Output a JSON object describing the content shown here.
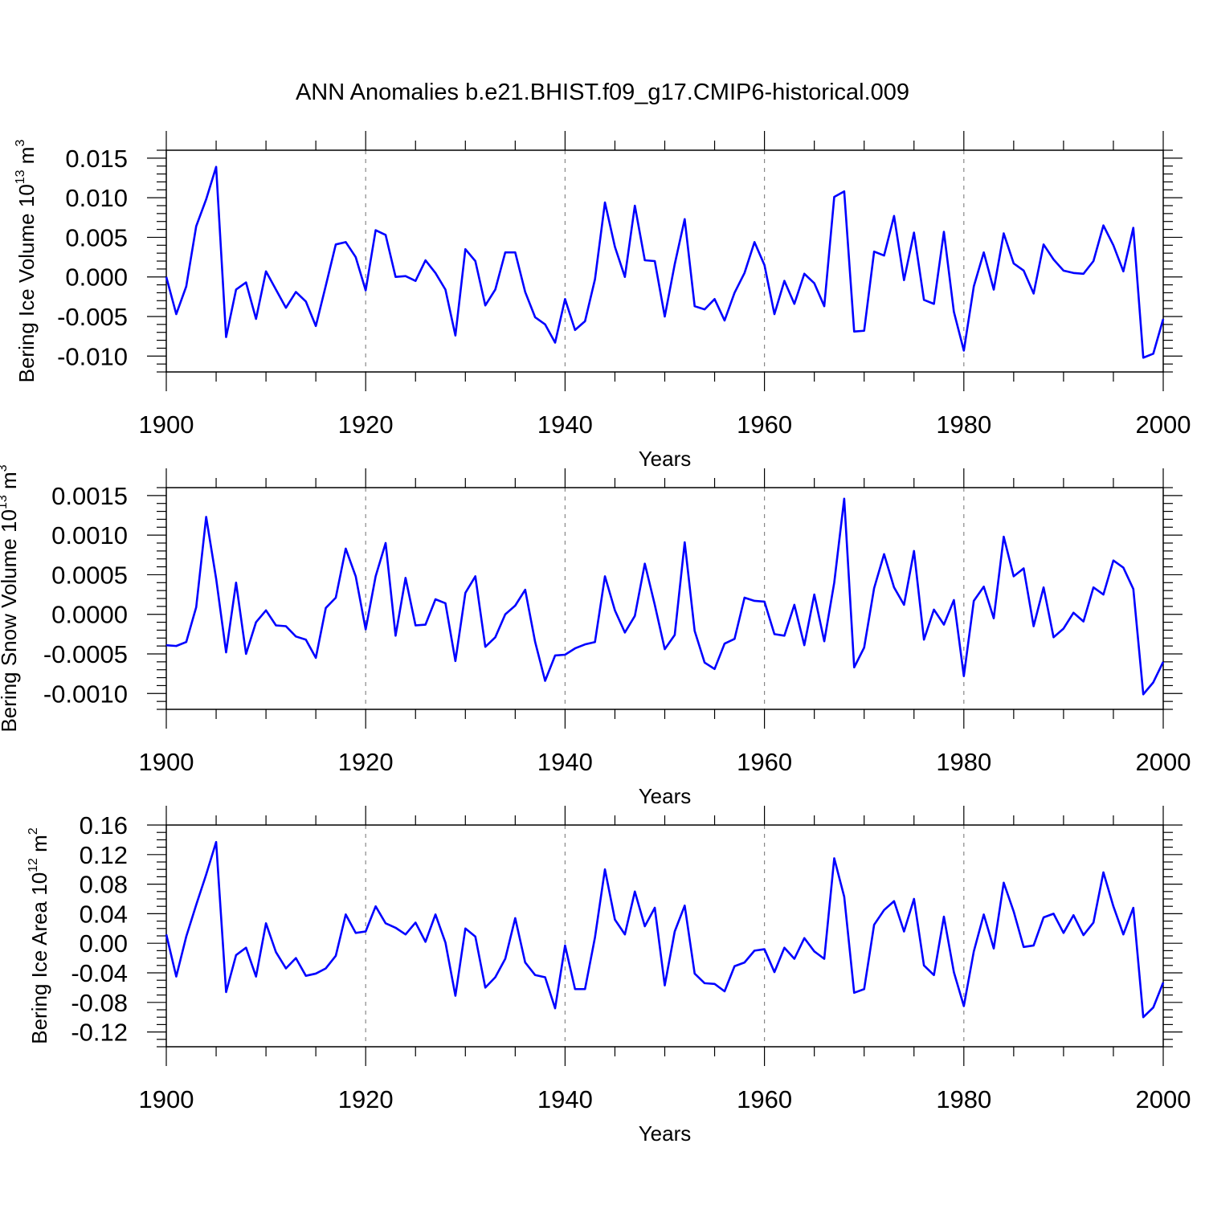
{
  "title": "ANN Anomalies b.e21.BHIST.f09_g17.CMIP6-historical.009",
  "colors": {
    "line": "#0000ff",
    "grid": "#888888",
    "axis": "#000000"
  },
  "chart_data": [
    {
      "type": "line",
      "xlabel": "Years",
      "ylabel_main": "Bering Ice Volume 10",
      "ylabel_sup": "13",
      "ylabel_unit": " m",
      "ylabel_unit_sup": "3",
      "xlim": [
        1900,
        2000
      ],
      "ylim": [
        -0.012,
        0.016
      ],
      "x_ticks": [
        1900,
        1920,
        1940,
        1960,
        1980,
        2000
      ],
      "x_tick_labels": [
        "1900",
        "1920",
        "1940",
        "1960",
        "1980",
        "2000"
      ],
      "y_ticks": [
        -0.01,
        -0.005,
        0.0,
        0.005,
        0.01,
        0.015
      ],
      "y_tick_labels": [
        "-0.010",
        "-0.005",
        "0.000",
        "0.005",
        "0.010",
        "0.015"
      ],
      "y_minor_step": 0.001,
      "x_start": 1900,
      "values": [
        0.0,
        -0.0047,
        -0.0012,
        0.0064,
        0.0098,
        0.0139,
        -0.0076,
        -0.0016,
        -0.0007,
        -0.0053,
        0.0007,
        -0.0016,
        -0.0039,
        -0.0019,
        -0.0031,
        -0.0062,
        -0.0011,
        0.0041,
        0.0044,
        0.0025,
        -0.0017,
        0.0059,
        0.0053,
        0.0,
        0.0001,
        -0.0005,
        0.0021,
        0.0005,
        -0.0016,
        -0.0074,
        0.0035,
        0.002,
        -0.0036,
        -0.0016,
        0.0031,
        0.0031,
        -0.0019,
        -0.0051,
        -0.006,
        -0.0083,
        -0.0028,
        -0.0067,
        -0.0056,
        -0.0003,
        0.0094,
        0.0038,
        0.0,
        0.009,
        0.0021,
        0.002,
        -0.005,
        0.0016,
        0.0073,
        -0.0037,
        -0.0041,
        -0.0028,
        -0.0055,
        -0.002,
        0.0005,
        0.0044,
        0.0015,
        -0.0047,
        -0.0005,
        -0.0034,
        0.0004,
        -0.0008,
        -0.0037,
        0.0101,
        0.0108,
        -0.0069,
        -0.0068,
        0.0032,
        0.0027,
        0.0077,
        -0.0004,
        0.0056,
        -0.0029,
        -0.0034,
        0.0057,
        -0.0044,
        -0.0093,
        -0.0012,
        0.0031,
        -0.0016,
        0.0055,
        0.0017,
        0.0008,
        -0.0021,
        0.0041,
        0.0022,
        0.0008,
        0.0005,
        0.0004,
        0.002,
        0.0065,
        0.004,
        0.0007,
        0.0062,
        -0.0102,
        -0.0097,
        -0.0053
      ]
    },
    {
      "type": "line",
      "xlabel": "Years",
      "ylabel_main": "Bering Snow Volume 10",
      "ylabel_sup": "13",
      "ylabel_unit": " m",
      "ylabel_unit_sup": "3",
      "xlim": [
        1900,
        2000
      ],
      "ylim": [
        -0.0012,
        0.0016
      ],
      "x_ticks": [
        1900,
        1920,
        1940,
        1960,
        1980,
        2000
      ],
      "x_tick_labels": [
        "1900",
        "1920",
        "1940",
        "1960",
        "1980",
        "2000"
      ],
      "y_ticks": [
        -0.001,
        -0.0005,
        0.0,
        0.0005,
        0.001,
        0.0015
      ],
      "y_tick_labels": [
        "-0.0010",
        "-0.0005",
        "0.0000",
        "0.0005",
        "0.0010",
        "0.0015"
      ],
      "y_minor_step": 0.0001,
      "x_start": 1900,
      "values": [
        -0.00039,
        -0.0004,
        -0.00035,
        9e-05,
        0.00123,
        0.00045,
        -0.00048,
        0.0004,
        -0.0005,
        -0.0001,
        5e-05,
        -0.00014,
        -0.00015,
        -0.00028,
        -0.00032,
        -0.00055,
        8e-05,
        0.00021,
        0.00083,
        0.00048,
        -0.00019,
        0.00048,
        0.0009,
        -0.00027,
        0.00046,
        -0.00014,
        -0.00013,
        0.00019,
        0.00014,
        -0.00059,
        0.00027,
        0.00048,
        -0.00041,
        -0.00029,
        0.0,
        0.00011,
        0.00031,
        -0.00035,
        -0.00084,
        -0.00052,
        -0.00051,
        -0.00043,
        -0.00038,
        -0.00035,
        0.00048,
        5e-05,
        -0.00023,
        -2e-05,
        0.00064,
        0.00012,
        -0.00044,
        -0.00026,
        0.00091,
        -0.00021,
        -0.00061,
        -0.00069,
        -0.00037,
        -0.00031,
        0.00021,
        0.00017,
        0.00016,
        -0.00025,
        -0.00027,
        0.00012,
        -0.00039,
        0.00025,
        -0.00034,
        0.0004,
        0.00146,
        -0.00067,
        -0.00042,
        0.00033,
        0.00076,
        0.00034,
        0.00012,
        0.0008,
        -0.00032,
        6e-05,
        -0.00013,
        0.00018,
        -0.00078,
        0.00017,
        0.00035,
        -5e-05,
        0.00098,
        0.00048,
        0.00058,
        -0.00015,
        0.00034,
        -0.00029,
        -0.00018,
        2e-05,
        -9e-05,
        0.00034,
        0.00025,
        0.00068,
        0.00059,
        0.00032,
        -0.00101,
        -0.00086,
        -0.0006
      ]
    },
    {
      "type": "line",
      "xlabel": "Years",
      "ylabel_main": "Bering Ice Area 10",
      "ylabel_sup": "12",
      "ylabel_unit": " m",
      "ylabel_unit_sup": "2",
      "xlim": [
        1900,
        2000
      ],
      "ylim": [
        -0.14,
        0.16
      ],
      "x_ticks": [
        1900,
        1920,
        1940,
        1960,
        1980,
        2000
      ],
      "x_tick_labels": [
        "1900",
        "1920",
        "1940",
        "1960",
        "1980",
        "2000"
      ],
      "y_ticks": [
        -0.12,
        -0.08,
        -0.04,
        0.0,
        0.04,
        0.08,
        0.12,
        0.16
      ],
      "y_tick_labels": [
        "-0.12",
        "-0.08",
        "-0.04",
        "0.00",
        "0.04",
        "0.08",
        "0.12",
        "0.16"
      ],
      "y_minor_step": 0.01,
      "x_start": 1900,
      "values": [
        0.012,
        -0.045,
        0.009,
        0.052,
        0.093,
        0.137,
        -0.066,
        -0.016,
        -0.006,
        -0.045,
        0.027,
        -0.012,
        -0.034,
        -0.02,
        -0.044,
        -0.041,
        -0.034,
        -0.017,
        0.039,
        0.014,
        0.016,
        0.05,
        0.027,
        0.021,
        0.012,
        0.028,
        0.002,
        0.039,
        0.001,
        -0.071,
        0.02,
        0.009,
        -0.06,
        -0.046,
        -0.021,
        0.034,
        -0.026,
        -0.043,
        -0.046,
        -0.088,
        -0.003,
        -0.062,
        -0.062,
        0.008,
        0.1,
        0.032,
        0.012,
        0.07,
        0.023,
        0.048,
        -0.057,
        0.016,
        0.051,
        -0.041,
        -0.054,
        -0.055,
        -0.065,
        -0.031,
        -0.026,
        -0.01,
        -0.008,
        -0.039,
        -0.006,
        -0.021,
        0.007,
        -0.011,
        -0.021,
        0.115,
        0.063,
        -0.067,
        -0.062,
        0.025,
        0.045,
        0.057,
        0.016,
        0.06,
        -0.03,
        -0.043,
        0.036,
        -0.039,
        -0.085,
        -0.011,
        0.039,
        -0.007,
        0.082,
        0.043,
        -0.005,
        -0.003,
        0.035,
        0.04,
        0.014,
        0.038,
        0.011,
        0.028,
        0.096,
        0.05,
        0.012,
        0.048,
        -0.1,
        -0.087,
        -0.053
      ]
    }
  ]
}
